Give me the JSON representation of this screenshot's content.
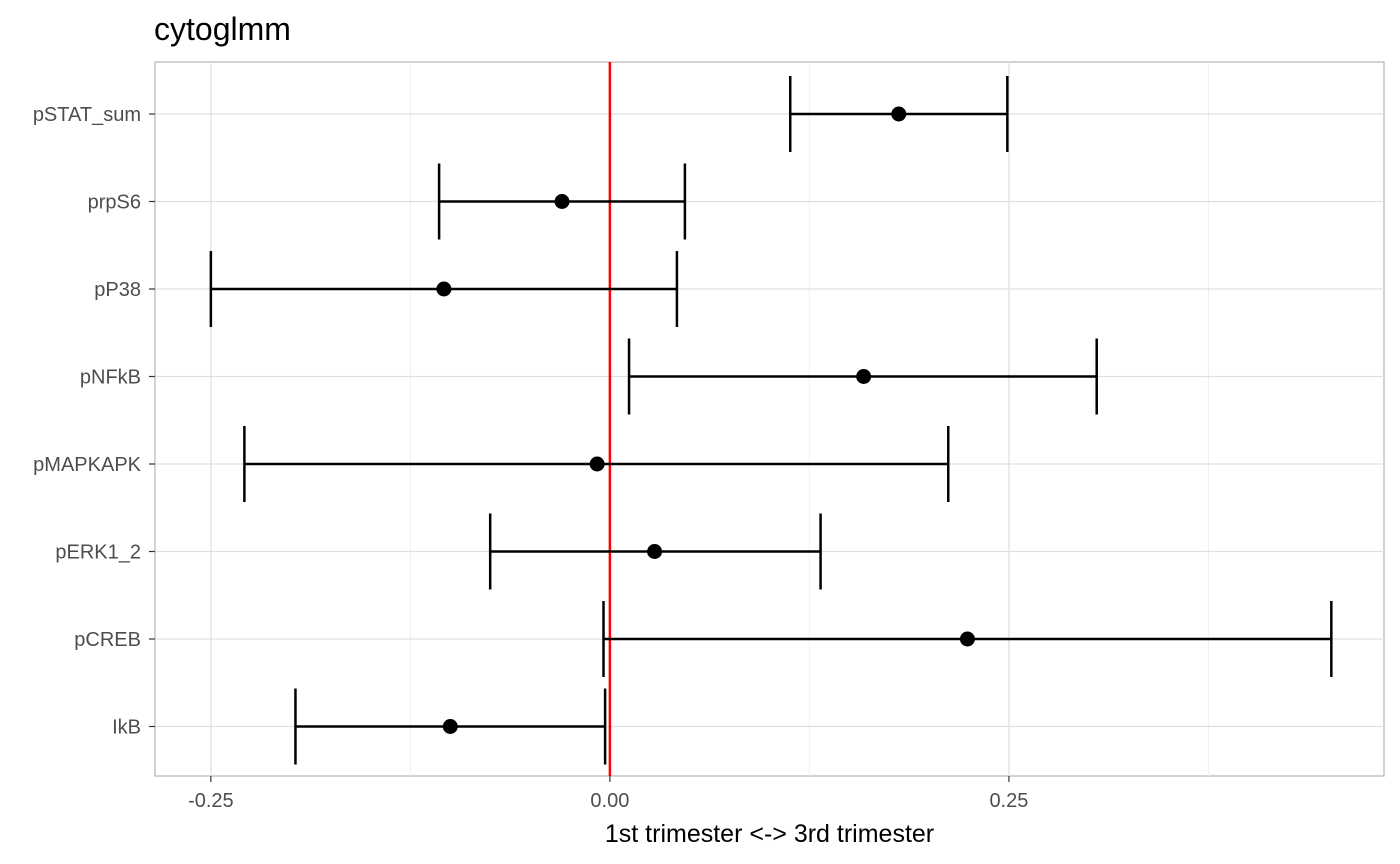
{
  "chart_data": {
    "type": "errorbar",
    "title": "cytoglmm",
    "xlabel": "1st trimester <-> 3rd trimester",
    "ylabel": "",
    "xlim": [
      -0.285,
      0.485
    ],
    "x_ticks": [
      -0.25,
      0.0,
      0.25
    ],
    "x_tick_labels": [
      "-0.25",
      "0.00",
      "0.25"
    ],
    "x_minor_ticks": [
      -0.125,
      0.125,
      0.375
    ],
    "grid": true,
    "reference_line": {
      "x": 0,
      "color": "#ff0000"
    },
    "point_color": "#000000",
    "categories": [
      "pSTAT_sum",
      "prpS6",
      "pP38",
      "pNFkB",
      "pMAPKAPK",
      "pERK1_2",
      "pCREB",
      "IkB"
    ],
    "points": [
      {
        "label": "pSTAT_sum",
        "estimate": 0.181,
        "low": 0.113,
        "high": 0.249
      },
      {
        "label": "prpS6",
        "estimate": -0.03,
        "low": -0.107,
        "high": 0.047
      },
      {
        "label": "pP38",
        "estimate": -0.104,
        "low": -0.25,
        "high": 0.042
      },
      {
        "label": "pNFkB",
        "estimate": 0.159,
        "low": 0.012,
        "high": 0.305
      },
      {
        "label": "pMAPKAPK",
        "estimate": -0.008,
        "low": -0.229,
        "high": 0.212
      },
      {
        "label": "pERK1_2",
        "estimate": 0.028,
        "low": -0.075,
        "high": 0.132
      },
      {
        "label": "pCREB",
        "estimate": 0.224,
        "low": -0.004,
        "high": 0.452
      },
      {
        "label": "IkB",
        "estimate": -0.1,
        "low": -0.197,
        "high": -0.003
      }
    ]
  }
}
